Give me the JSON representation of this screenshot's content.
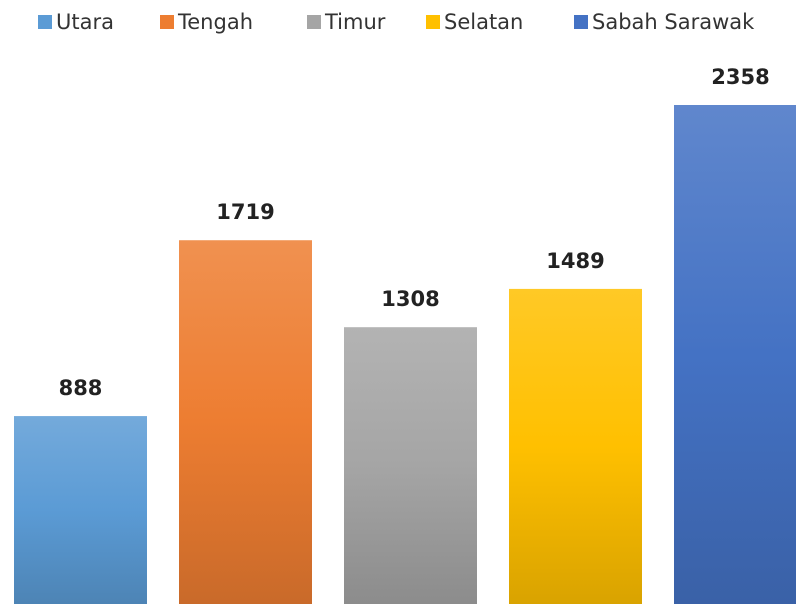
{
  "chart_data": {
    "type": "bar",
    "series": [
      {
        "name": "Utara",
        "color": "#5b9bd5",
        "values": [
          888
        ]
      },
      {
        "name": "Tengah",
        "color": "#ed7d31",
        "values": [
          1719
        ]
      },
      {
        "name": "Timur",
        "color": "#a5a5a5",
        "values": [
          1308
        ]
      },
      {
        "name": "Selatan",
        "color": "#ffc000",
        "values": [
          1489
        ]
      },
      {
        "name": "Sabah Sarawak",
        "color": "#4472c4",
        "values": [
          2358
        ]
      }
    ],
    "legend": "top"
  }
}
